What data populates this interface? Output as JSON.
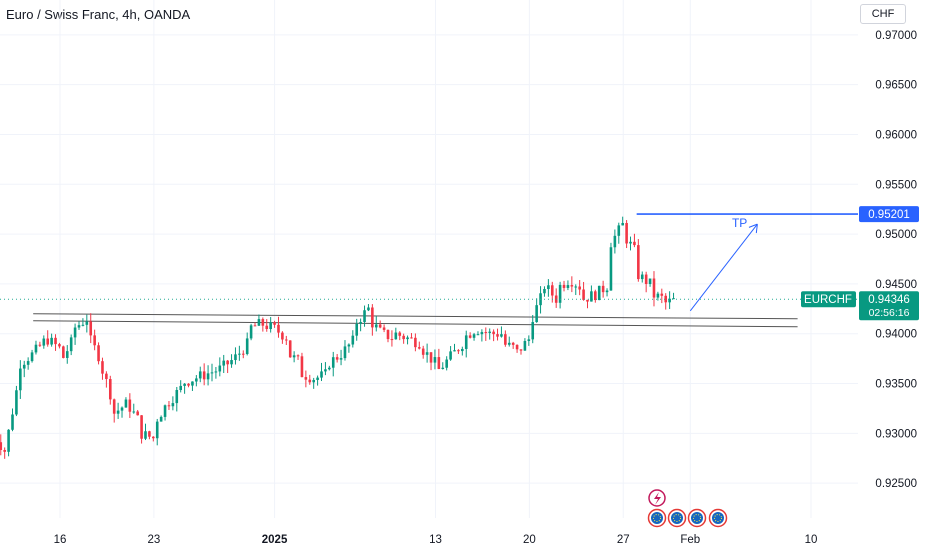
{
  "header": {
    "title": "Euro / Swiss Franc, 4h, OANDA",
    "currency": "CHF"
  },
  "colors": {
    "up": "#089981",
    "down": "#f23645",
    "tp_line": "#2962ff",
    "current_line": "#22ab94",
    "support": "#555555",
    "grid": "#f0f3fa"
  },
  "chart_data": {
    "type": "candlestick",
    "symbol": "EURCHF",
    "interval": "4h",
    "ylim": [
      0.9215,
      0.9735
    ],
    "y_ticks": [
      "0.97000",
      "0.96500",
      "0.96000",
      "0.95500",
      "0.95000",
      "0.94500",
      "0.94000",
      "0.93500",
      "0.93000",
      "0.92500"
    ],
    "x_ticks": [
      {
        "label": "16",
        "date": "2024-12-16",
        "bold": false
      },
      {
        "label": "23",
        "date": "2024-12-23",
        "bold": false
      },
      {
        "label": "2025",
        "date": "2025-01-01",
        "bold": true
      },
      {
        "label": "13",
        "date": "2025-01-13",
        "bold": false
      },
      {
        "label": "20",
        "date": "2025-01-20",
        "bold": false
      },
      {
        "label": "27",
        "date": "2025-01-27",
        "bold": false
      },
      {
        "label": "Feb",
        "date": "2025-02-01",
        "bold": false
      },
      {
        "label": "10",
        "date": "2025-02-10",
        "bold": false
      }
    ],
    "price_path": [
      [
        "2024-12-11",
        0.93
      ],
      [
        "2024-12-12",
        0.928
      ],
      [
        "2024-12-12",
        0.929
      ],
      [
        "2024-12-13",
        0.936
      ],
      [
        "2024-12-13",
        0.937
      ],
      [
        "2024-12-14",
        0.938
      ],
      [
        "2024-12-15",
        0.9395
      ],
      [
        "2024-12-16",
        0.9385
      ],
      [
        "2024-12-16",
        0.937
      ],
      [
        "2024-12-17",
        0.9395
      ],
      [
        "2024-12-17",
        0.9405
      ],
      [
        "2024-12-18",
        0.9415
      ],
      [
        "2024-12-18",
        0.94
      ],
      [
        "2024-12-19",
        0.9375
      ],
      [
        "2024-12-19",
        0.937
      ],
      [
        "2024-12-20",
        0.933
      ],
      [
        "2024-12-20",
        0.932
      ],
      [
        "2024-12-21",
        0.933
      ],
      [
        "2024-12-22",
        0.931
      ],
      [
        "2024-12-22",
        0.93
      ],
      [
        "2024-12-23",
        0.9295
      ],
      [
        "2024-12-23",
        0.931
      ],
      [
        "2024-12-24",
        0.933
      ],
      [
        "2024-12-25",
        0.9345
      ],
      [
        "2024-12-25",
        0.935
      ],
      [
        "2024-12-26",
        0.9355
      ],
      [
        "2024-12-27",
        0.936
      ],
      [
        "2024-12-28",
        0.9365
      ],
      [
        "2024-12-29",
        0.9375
      ],
      [
        "2024-12-30",
        0.939
      ],
      [
        "2024-12-30",
        0.9405
      ],
      [
        "2024-12-31",
        0.941
      ],
      [
        "2025-01-01",
        0.9405
      ],
      [
        "2025-01-02",
        0.9395
      ],
      [
        "2025-01-02",
        0.938
      ],
      [
        "2025-01-03",
        0.937
      ],
      [
        "2025-01-03",
        0.936
      ],
      [
        "2025-01-04",
        0.9355
      ],
      [
        "2025-01-05",
        0.936
      ],
      [
        "2025-01-05",
        0.937
      ],
      [
        "2025-01-06",
        0.938
      ],
      [
        "2025-01-07",
        0.9395
      ],
      [
        "2025-01-07",
        0.941
      ],
      [
        "2025-01-08",
        0.9425
      ],
      [
        "2025-01-08",
        0.9415
      ],
      [
        "2025-01-09",
        0.94
      ],
      [
        "2025-01-10",
        0.9395
      ],
      [
        "2025-01-10",
        0.94
      ],
      [
        "2025-01-11",
        0.9395
      ],
      [
        "2025-01-12",
        0.939
      ],
      [
        "2025-01-12",
        0.9385
      ],
      [
        "2025-01-13",
        0.937
      ],
      [
        "2025-01-13",
        0.936
      ],
      [
        "2025-01-14",
        0.9375
      ],
      [
        "2025-01-15",
        0.939
      ],
      [
        "2025-01-15",
        0.9395
      ],
      [
        "2025-01-16",
        0.9405
      ],
      [
        "2025-01-17",
        0.94
      ],
      [
        "2025-01-18",
        0.94
      ],
      [
        "2025-01-18",
        0.939
      ],
      [
        "2025-01-19",
        0.9385
      ],
      [
        "2025-01-19",
        0.938
      ],
      [
        "2025-01-20",
        0.9395
      ],
      [
        "2025-01-20",
        0.941
      ],
      [
        "2025-01-21",
        0.944
      ],
      [
        "2025-01-21",
        0.945
      ],
      [
        "2025-01-22",
        0.9435
      ],
      [
        "2025-01-22",
        0.9445
      ],
      [
        "2025-01-23",
        0.9455
      ],
      [
        "2025-01-24",
        0.9445
      ],
      [
        "2025-01-24",
        0.9435
      ],
      [
        "2025-01-25",
        0.944
      ],
      [
        "2025-01-26",
        0.945
      ],
      [
        "2025-01-26",
        0.949
      ],
      [
        "2025-01-27",
        0.951
      ],
      [
        "2025-01-27",
        0.95
      ],
      [
        "2025-01-28",
        0.948
      ],
      [
        "2025-01-28",
        0.946
      ],
      [
        "2025-01-29",
        0.945
      ],
      [
        "2025-01-29",
        0.944
      ],
      [
        "2025-01-30",
        0.9435
      ],
      [
        "2025-01-30",
        0.943
      ],
      [
        "2025-01-31",
        0.94346
      ]
    ],
    "horizontal_lines": [
      {
        "name": "tp_level",
        "value": 0.95201
      }
    ],
    "support_lines": [
      {
        "from": [
          "2024-12-14",
          0.942
        ],
        "to": [
          "2025-02-09",
          0.9415
        ]
      },
      {
        "from": [
          "2024-12-14",
          0.9413
        ],
        "to": [
          "2025-02-09",
          0.9407
        ]
      }
    ],
    "arrow": {
      "from": [
        "2025-02-01",
        0.9423
      ],
      "to": [
        "2025-02-06",
        0.951
      ]
    },
    "annotations": [
      {
        "text": "TP",
        "date": "2025-02-05",
        "value": 0.9511
      }
    ],
    "current_price": {
      "symbol": "EURCHF",
      "value": "0.94346",
      "countdown": "02:56:16"
    },
    "tp_label": "0.95201"
  }
}
